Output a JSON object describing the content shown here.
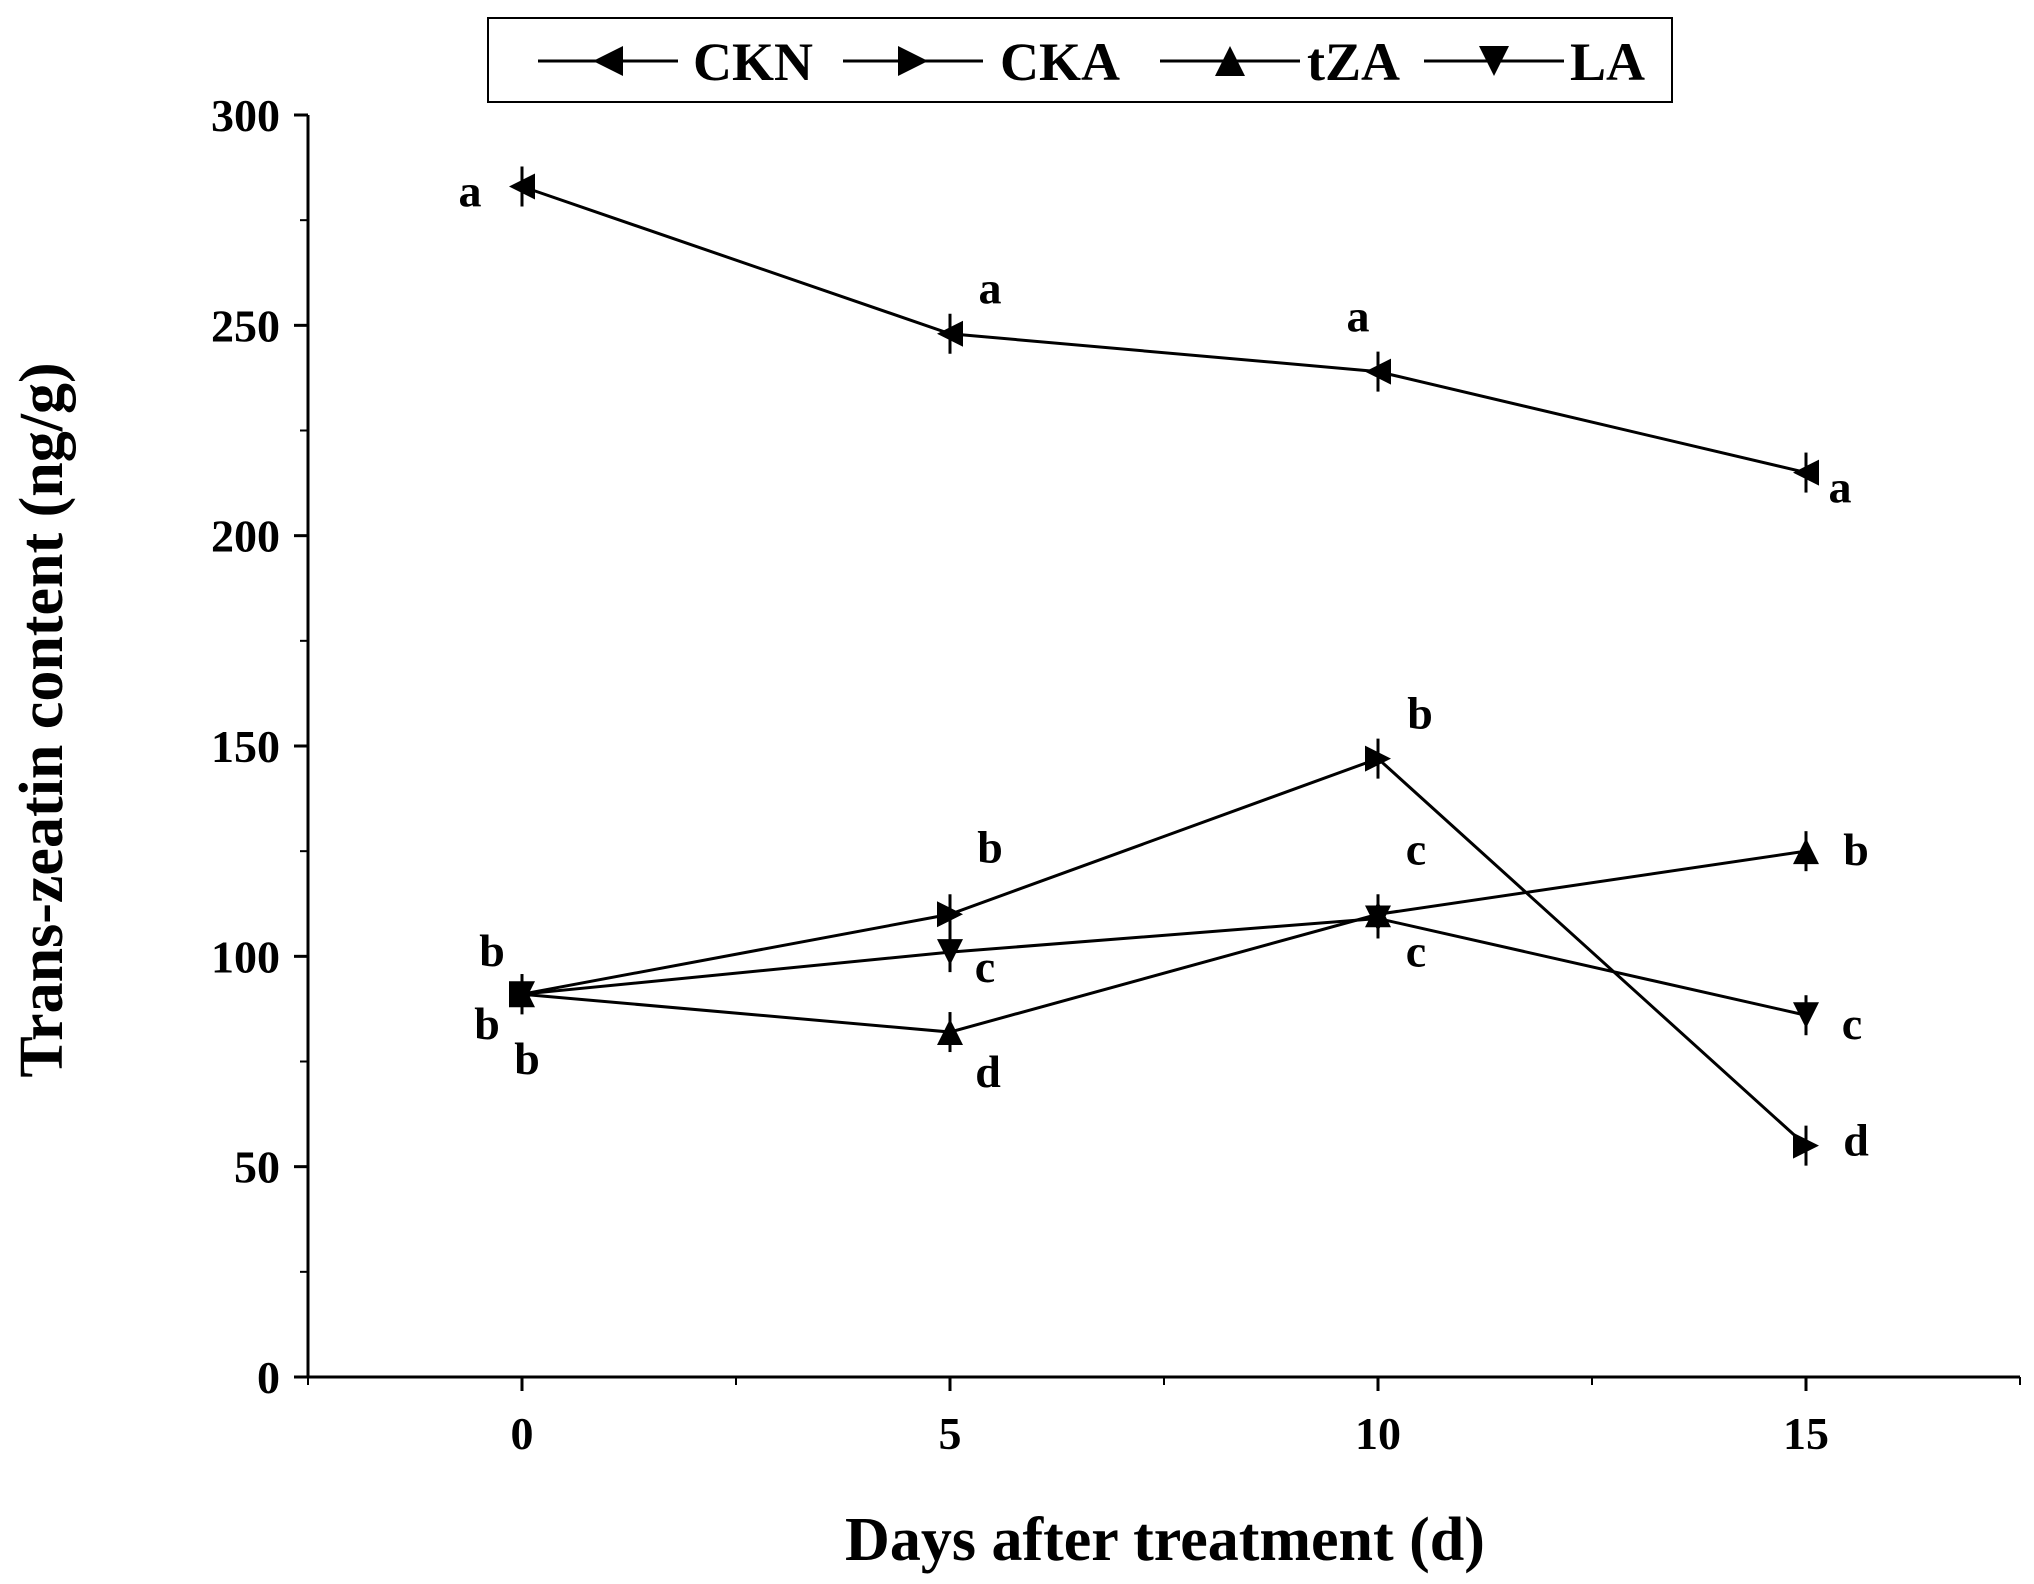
{
  "chart_data": {
    "type": "line",
    "title": "",
    "xlabel": "Days after treatment (d)",
    "ylabel": "Trans-zeatin content (ng/g)",
    "xlim": [
      -2.5,
      17.5
    ],
    "ylim": [
      0,
      300
    ],
    "x": [
      0,
      5,
      10,
      15
    ],
    "x_ticks": [
      "0",
      "5",
      "10",
      "15"
    ],
    "y_ticks": [
      "0",
      "50",
      "100",
      "150",
      "200",
      "250",
      "300"
    ],
    "legend_position": "top",
    "series": [
      {
        "name": "CKN",
        "marker": "triangle-left",
        "values": [
          283,
          248,
          239,
          215
        ],
        "labels": [
          "a",
          "a",
          "a",
          "a"
        ]
      },
      {
        "name": "CKA",
        "marker": "triangle-right",
        "values": [
          91,
          110,
          147,
          55
        ],
        "labels": [
          "b",
          "b",
          "b",
          "d"
        ]
      },
      {
        "name": "tZA",
        "marker": "triangle-up",
        "values": [
          91,
          82,
          110,
          125
        ],
        "labels": [
          "b",
          "d",
          "c",
          "b"
        ]
      },
      {
        "name": "LA",
        "marker": "triangle-down",
        "values": [
          91,
          101,
          109,
          86
        ],
        "labels": [
          "b",
          "c",
          "c",
          "c"
        ]
      }
    ],
    "colors": {
      "line": "#000000",
      "background": "#ffffff"
    }
  }
}
